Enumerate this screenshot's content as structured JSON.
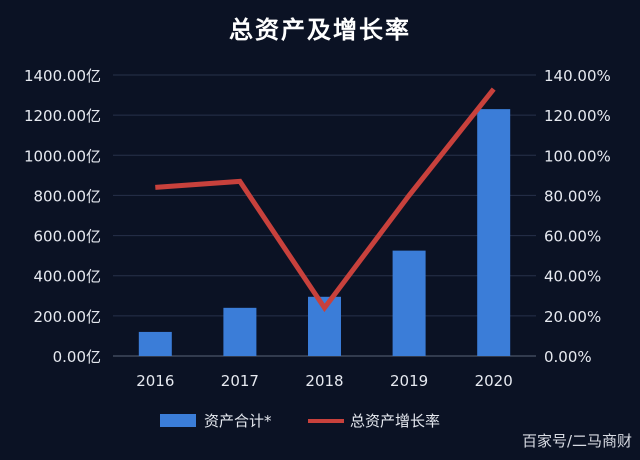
{
  "chart_data": {
    "type": "bar",
    "title": "总资产及增长率",
    "categories": [
      "2016",
      "2017",
      "2018",
      "2019",
      "2020"
    ],
    "series": [
      {
        "name": "资产合计",
        "type": "bar",
        "axis": "left",
        "color": "#3b7dd8",
        "values": [
          120,
          240,
          295,
          525,
          1230
        ]
      },
      {
        "name": "总资产增长率",
        "type": "line",
        "axis": "right",
        "color": "#c8413c",
        "values": [
          84,
          87,
          24,
          80,
          133
        ]
      }
    ],
    "y_left": {
      "ylim": [
        0,
        1400
      ],
      "ticks": [
        "0.00亿",
        "200.00亿",
        "400.00亿",
        "600.00亿",
        "800.00亿",
        "1000.00亿",
        "1200.00亿",
        "1400.00亿"
      ]
    },
    "y_right": {
      "ylim": [
        0,
        140
      ],
      "ticks": [
        "0.00%",
        "20.00%",
        "40.00%",
        "60.00%",
        "80.00%",
        "100.00%",
        "120.00%",
        "140.00%"
      ]
    },
    "grid": true,
    "legend_position": "bottom"
  },
  "legend": {
    "bar_label": "资产合计*",
    "line_label": "总资产增长率"
  },
  "watermark": "百家号/二马商财"
}
